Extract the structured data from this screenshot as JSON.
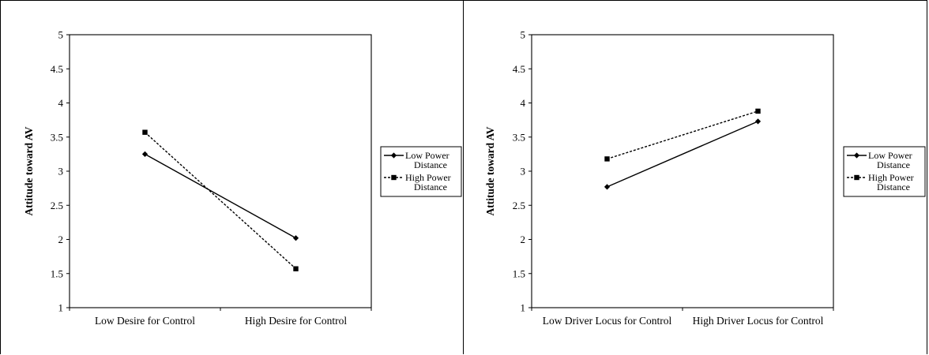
{
  "chart_data": [
    {
      "type": "line",
      "title": "",
      "xlabel": "",
      "ylabel": "Attitude toward AV",
      "ylim": [
        1,
        5
      ],
      "yticks": [
        "1",
        "1.5",
        "2",
        "2.5",
        "3",
        "3.5",
        "4",
        "4.5",
        "5"
      ],
      "categories": [
        "Low Desire for Control",
        "High Desire for Control"
      ],
      "grid": false,
      "legend_position": "right",
      "series": [
        {
          "name": "Low Power Distance",
          "values": [
            3.25,
            2.02
          ],
          "line_style": "solid",
          "marker": "diamond"
        },
        {
          "name": "High Power Distance",
          "values": [
            3.57,
            1.57
          ],
          "line_style": "dashed",
          "marker": "square"
        }
      ]
    },
    {
      "type": "line",
      "title": "",
      "xlabel": "",
      "ylabel": "Attitude toward AV",
      "ylim": [
        1,
        5
      ],
      "yticks": [
        "1",
        "1.5",
        "2",
        "2.5",
        "3",
        "3.5",
        "4",
        "4.5",
        "5"
      ],
      "categories": [
        "Low Driver Locus for Control",
        "High Driver Locus for Control"
      ],
      "grid": false,
      "legend_position": "right",
      "series": [
        {
          "name": "Low Power Distance",
          "values": [
            2.77,
            3.73
          ],
          "line_style": "solid",
          "marker": "diamond"
        },
        {
          "name": "High Power Distance",
          "values": [
            3.18,
            3.88
          ],
          "line_style": "dashed",
          "marker": "square"
        }
      ]
    }
  ]
}
